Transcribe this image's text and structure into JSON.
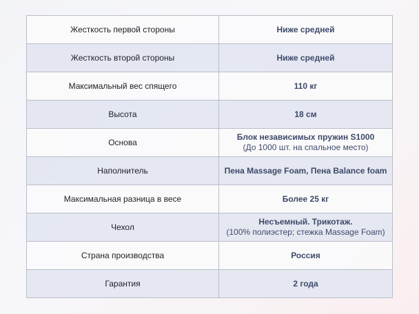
{
  "rows": [
    {
      "label": "Жесткость первой стороны",
      "value": "Ниже средней",
      "note": null
    },
    {
      "label": "Жесткость второй стороны",
      "value": "Ниже средней",
      "note": null
    },
    {
      "label": "Максимальный вес спящего",
      "value": "110 кг",
      "note": null
    },
    {
      "label": "Высота",
      "value": "18 см",
      "note": null
    },
    {
      "label": "Основа",
      "value": "Блок независимых пружин S1000",
      "note": "(До 1000 шт. на спальное место)"
    },
    {
      "label": "Наполнитель",
      "value": "Пена Massage Foam, Пена Balance foam",
      "note": null
    },
    {
      "label": "Максимальная разница в весе",
      "value": "Более 25 кг",
      "note": null
    },
    {
      "label": "Чехол",
      "value": "Несъемный. Трикотаж.",
      "note": "(100% полиэстер; стежка Massage Foam)"
    },
    {
      "label": "Страна производства",
      "value": "Россия",
      "note": null
    },
    {
      "label": "Гарантия",
      "value": "2 года",
      "note": null
    }
  ],
  "colors": {
    "value_text": "#3e4a69",
    "row_alt": "#e2e6f1",
    "border": "#b9bdc8"
  }
}
